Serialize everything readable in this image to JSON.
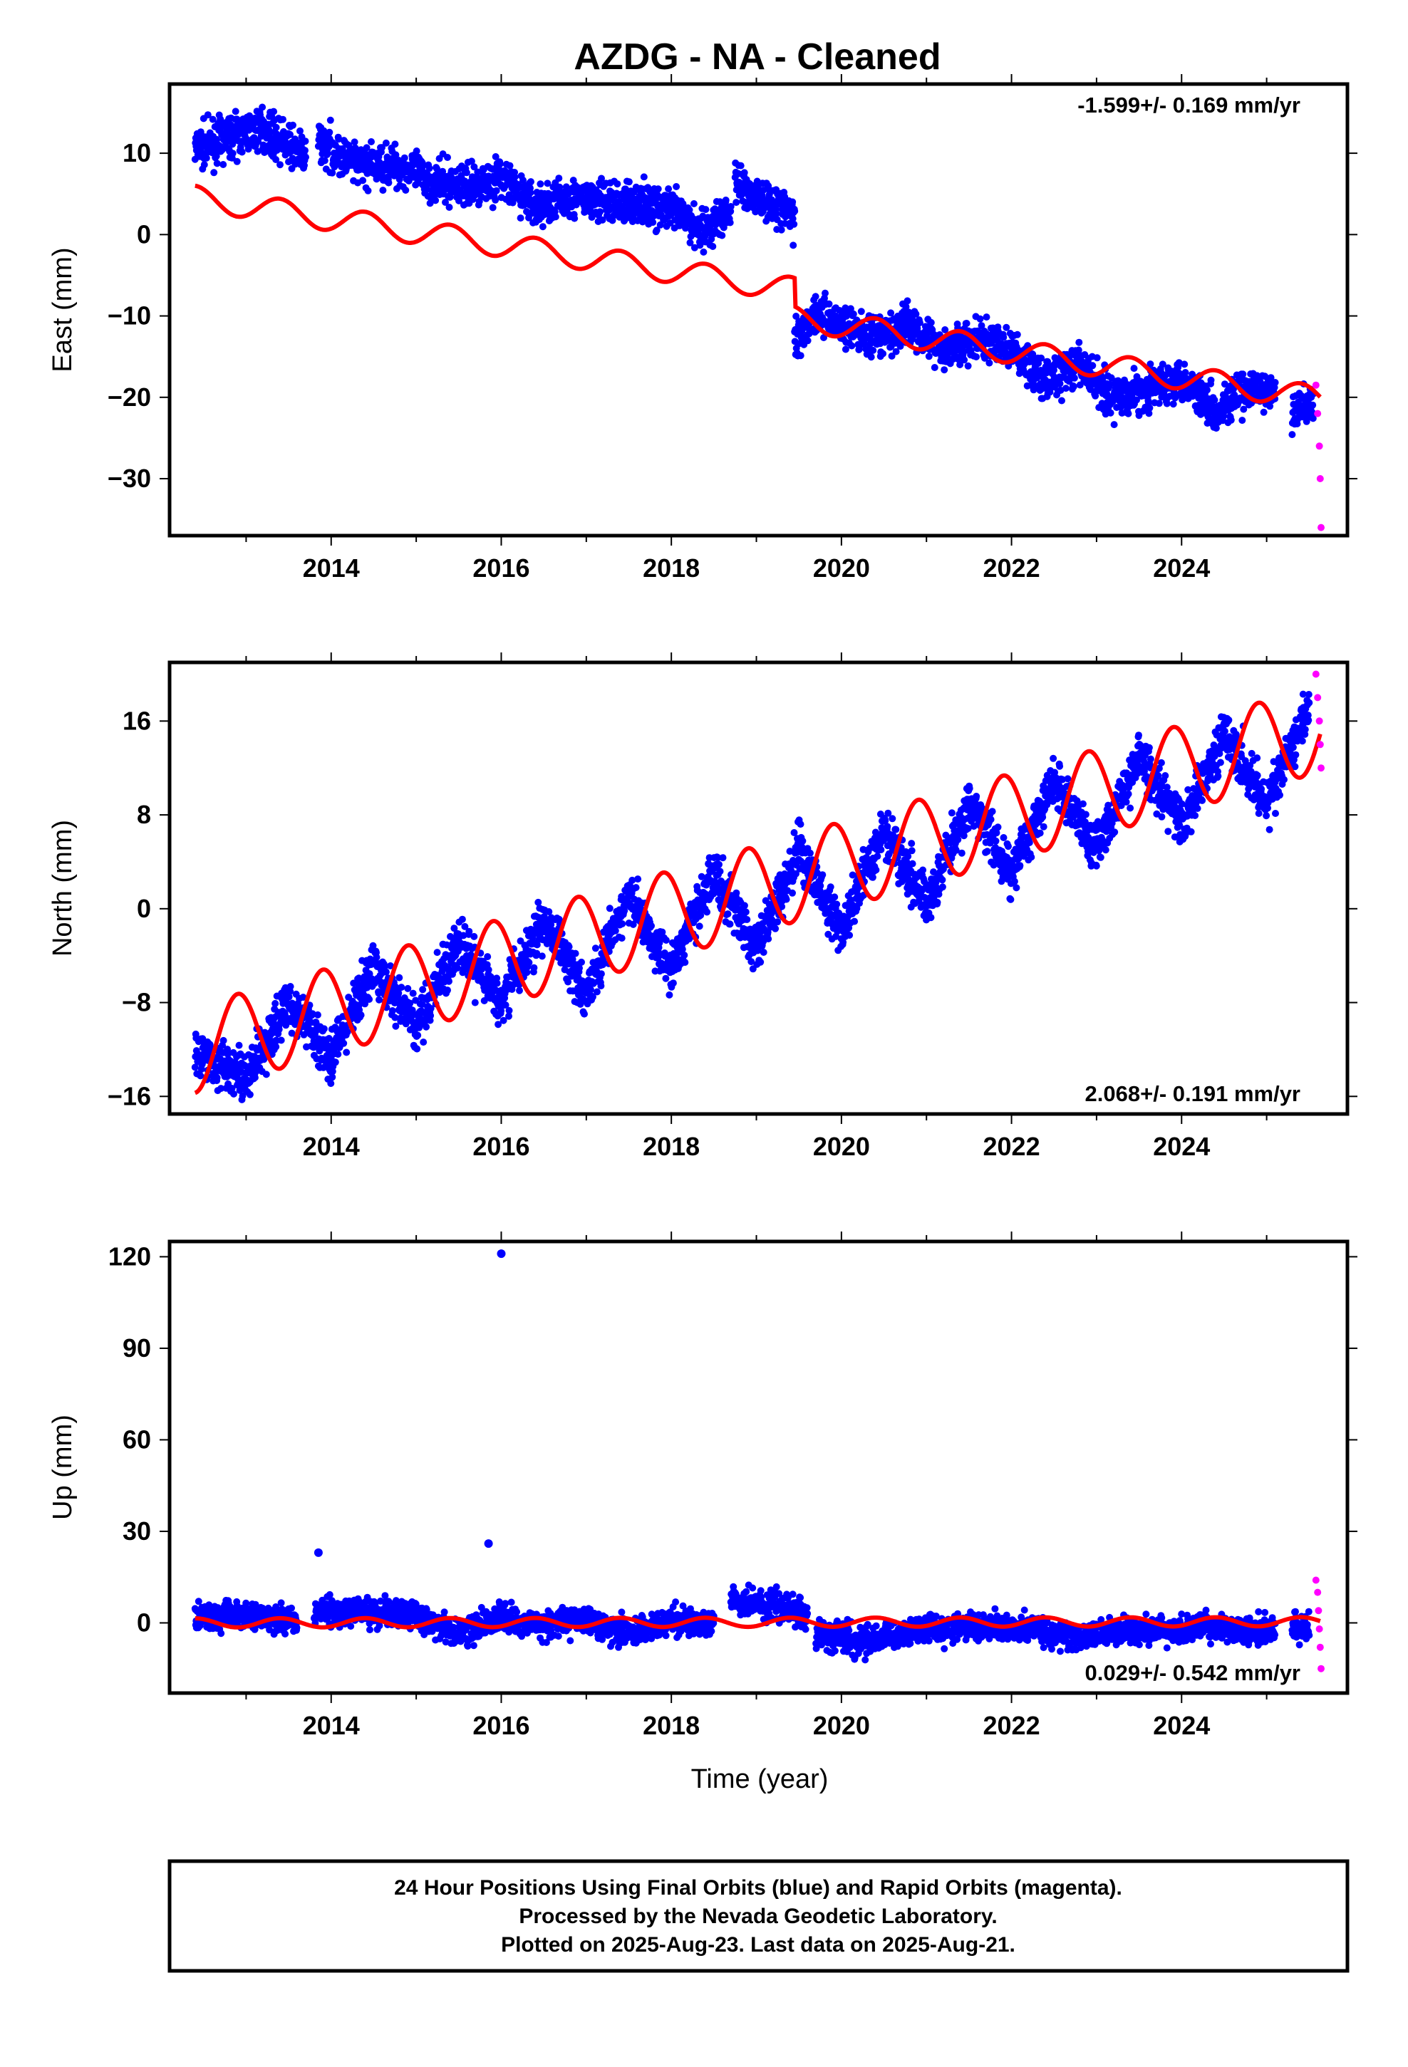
{
  "title": "AZDG  - NA - Cleaned",
  "x_label": "Time (year)",
  "colors": {
    "final": "#0000ff",
    "rapid": "#ff00ff",
    "model": "#ff0000"
  },
  "footer": {
    "line1": "24 Hour Positions Using Final Orbits (blue) and Rapid Orbits (magenta).",
    "line2": "Processed by the Nevada Geodetic Laboratory.",
    "line3": "Plotted on 2025-Aug-23. Last data on 2025-Aug-21."
  },
  "chart_data": [
    {
      "type": "scatter",
      "ylabel": "East (mm)",
      "rate_label": "-1.599+/- 0.169 mm/yr",
      "rate_position": "top-right",
      "xlim": [
        2012.1,
        2025.95
      ],
      "ylim": [
        -37,
        18.5
      ],
      "xticks": [
        2014,
        2016,
        2018,
        2020,
        2022,
        2024
      ],
      "yticks": [
        -30,
        -20,
        -10,
        0,
        10
      ],
      "final_orbit_segments": [
        {
          "x": [
            2012.4,
            2012.8,
            2013.2,
            2013.5,
            2013.7
          ],
          "y": [
            10.5,
            12.0,
            13.0,
            11.0,
            9.5
          ]
        },
        {
          "x": [
            2013.85,
            2014.3,
            2014.8,
            2015.2,
            2015.6,
            2016.0,
            2016.4,
            2016.8,
            2017.2,
            2017.6,
            2018.0,
            2018.4,
            2018.7
          ],
          "y": [
            11.5,
            8.5,
            8.5,
            6.5,
            6.0,
            7.0,
            3.5,
            4.5,
            4.0,
            4.0,
            3.0,
            0.5,
            3.0
          ]
        },
        {
          "x": [
            2018.75,
            2019.0,
            2019.2,
            2019.45
          ],
          "y": [
            6.5,
            4.5,
            4.0,
            2.0
          ]
        },
        {
          "x": [
            2019.45,
            2019.7,
            2020.0,
            2020.4,
            2020.8,
            2021.2,
            2021.6,
            2022.0,
            2022.4,
            2022.8,
            2023.2,
            2023.6,
            2024.0,
            2024.4,
            2024.8,
            2025.1
          ],
          "y": [
            -13.0,
            -9.5,
            -11.0,
            -13.0,
            -11.0,
            -14.0,
            -13.0,
            -14.0,
            -18.0,
            -16.0,
            -20.0,
            -19.0,
            -17.5,
            -21.5,
            -19.0,
            -19.5
          ]
        },
        {
          "x": [
            2025.3,
            2025.45,
            2025.55
          ],
          "y": [
            -22.5,
            -20.5,
            -21.0
          ]
        }
      ],
      "rapid_orbit": {
        "x": [
          2025.58,
          2025.6,
          2025.62,
          2025.63,
          2025.64
        ],
        "y": [
          -18.5,
          -22.0,
          -26.0,
          -30.0,
          -36.0
        ]
      },
      "model": {
        "trend_start": 4.5,
        "trend_rate": -1.599,
        "annual_amplitude": 1.5,
        "offset_epoch": 2019.45,
        "offset": -3.5,
        "x_start": 2012.4,
        "x_end": 2025.63
      }
    },
    {
      "type": "scatter",
      "ylabel": "North (mm)",
      "rate_label": "2.068+/- 0.191 mm/yr",
      "rate_position": "bottom-right",
      "xlim": [
        2012.1,
        2025.95
      ],
      "ylim": [
        -17.5,
        21
      ],
      "xticks": [
        2014,
        2016,
        2018,
        2020,
        2022,
        2024
      ],
      "yticks": [
        -16,
        -8,
        0,
        8,
        16
      ],
      "final_orbit_segments": [
        {
          "x": [
            2012.4,
            2013.0,
            2013.5,
            2014.0,
            2014.5,
            2015.0,
            2015.5,
            2016.0,
            2016.5,
            2017.0,
            2017.5,
            2018.0,
            2018.5,
            2019.0,
            2019.5,
            2020.0,
            2020.5,
            2021.0,
            2021.5,
            2022.0,
            2022.5,
            2023.0,
            2023.5,
            2024.0,
            2024.5,
            2025.0,
            2025.5
          ],
          "y": [
            -12.0,
            -14.5,
            -8.0,
            -12.5,
            -5.0,
            -10.0,
            -3.0,
            -8.0,
            -1.0,
            -7.0,
            1.0,
            -5.0,
            3.0,
            -3.5,
            5.0,
            -2.0,
            7.0,
            0.5,
            9.0,
            3.0,
            11.0,
            5.0,
            13.0,
            7.0,
            15.0,
            9.0,
            17.0
          ]
        }
      ],
      "rapid_orbit": {
        "x": [
          2025.58,
          2025.6,
          2025.62,
          2025.63,
          2025.64
        ],
        "y": [
          20.0,
          18.0,
          16.0,
          14.0,
          12.0
        ]
      },
      "model": {
        "trend_start": -12.0,
        "trend_rate": 2.068,
        "annual_amplitude": 3.7,
        "offset_epoch": null,
        "offset": 0,
        "x_start": 2012.4,
        "x_end": 2025.63
      }
    },
    {
      "type": "scatter",
      "ylabel": "Up (mm)",
      "rate_label": "0.029+/- 0.542 mm/yr",
      "rate_position": "bottom-right",
      "xlim": [
        2012.1,
        2025.95
      ],
      "ylim": [
        -23,
        125
      ],
      "xticks": [
        2014,
        2016,
        2018,
        2020,
        2022,
        2024
      ],
      "yticks": [
        0,
        30,
        60,
        90,
        120
      ],
      "final_orbit_segments": [
        {
          "x": [
            2012.4,
            2013.0,
            2013.6
          ],
          "y": [
            2.0,
            3.0,
            0.5
          ]
        },
        {
          "x": [
            2013.8,
            2014.5,
            2015.0,
            2015.5,
            2016.0,
            2016.5,
            2017.0,
            2017.5,
            2018.0,
            2018.5
          ],
          "y": [
            3.5,
            4.0,
            2.5,
            -4.0,
            2.0,
            -1.0,
            1.5,
            -4.0,
            1.0,
            -1.0
          ]
        },
        {
          "x": [
            2018.7,
            2019.2,
            2019.6
          ],
          "y": [
            7.0,
            6.0,
            3.0
          ]
        },
        {
          "x": [
            2019.7,
            2020.2,
            2020.8,
            2021.5,
            2022.2,
            2022.8,
            2023.5,
            2024.2,
            2024.8,
            2025.1
          ],
          "y": [
            -3.0,
            -6.0,
            -3.0,
            -1.0,
            -2.0,
            -4.5,
            -2.5,
            -1.5,
            -2.5,
            -1.5
          ]
        },
        {
          "x": [
            2025.3,
            2025.5
          ],
          "y": [
            -2.0,
            -1.0
          ]
        }
      ],
      "outliers": [
        {
          "x": 2016.0,
          "y": 121
        },
        {
          "x": 2015.85,
          "y": 26
        },
        {
          "x": 2013.85,
          "y": 23
        }
      ],
      "rapid_orbit": {
        "x": [
          2025.58,
          2025.6,
          2025.61,
          2025.62,
          2025.63,
          2025.64
        ],
        "y": [
          14.0,
          10.0,
          4.0,
          -2.0,
          -8.0,
          -15.0
        ]
      },
      "model": {
        "trend_start": 0.0,
        "trend_rate": 0.029,
        "annual_amplitude": 1.5,
        "offset_epoch": null,
        "offset": 0,
        "x_start": 2012.4,
        "x_end": 2025.63
      }
    }
  ]
}
